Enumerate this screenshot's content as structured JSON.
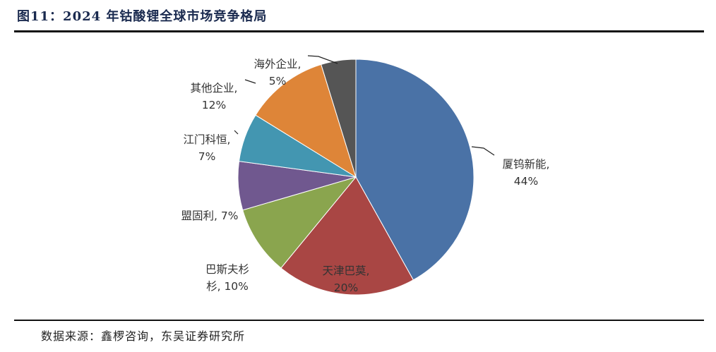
{
  "figure_title": "图11：2024 年钴酸锂全球市场竞争格局",
  "source_note": "数据来源：鑫椤咨询，东吴证券研究所",
  "chart_data": {
    "type": "pie",
    "title": "",
    "unit": "%",
    "slices": [
      {
        "name": "厦钨新能",
        "value": 44,
        "color": "#4A72A6",
        "label_lines": [
          "厦钨新能,",
          "44%"
        ]
      },
      {
        "name": "天津巴莫",
        "value": 20,
        "color": "#A94644",
        "label_lines": [
          "天津巴莫,",
          "20%"
        ]
      },
      {
        "name": "巴斯夫杉杉",
        "value": 10,
        "color": "#8AA54E",
        "label_lines": [
          "巴斯夫杉",
          "杉, 10%"
        ]
      },
      {
        "name": "盟固利",
        "value": 7,
        "color": "#70588F",
        "label_lines": [
          "盟固利, 7%"
        ]
      },
      {
        "name": "江门科恒",
        "value": 7,
        "color": "#4396B1",
        "label_lines": [
          "江门科恒,",
          "7%"
        ]
      },
      {
        "name": "其他企业",
        "value": 12,
        "color": "#DE8538",
        "label_lines": [
          "其他企业,",
          "12%"
        ]
      },
      {
        "name": "海外企业",
        "value": 5,
        "color": "#555555",
        "label_lines": [
          "海外企业,",
          "5%"
        ]
      }
    ]
  }
}
